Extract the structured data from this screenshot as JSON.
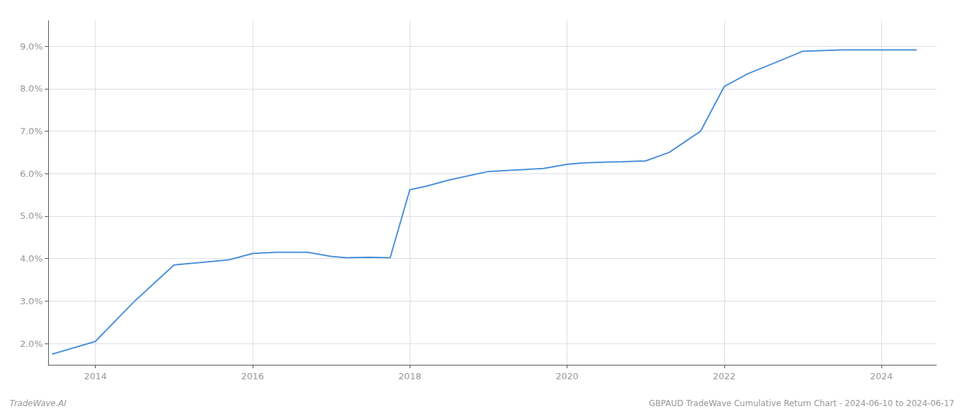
{
  "chart_data": {
    "type": "line",
    "x": [
      2013.45,
      2014.0,
      2014.5,
      2015.0,
      2015.3,
      2015.7,
      2016.0,
      2016.3,
      2016.7,
      2017.0,
      2017.2,
      2017.5,
      2017.75,
      2018.0,
      2018.2,
      2018.5,
      2018.8,
      2019.0,
      2019.3,
      2019.7,
      2020.0,
      2020.2,
      2020.5,
      2020.7,
      2021.0,
      2021.3,
      2021.7,
      2022.0,
      2022.3,
      2022.7,
      2023.0,
      2023.3,
      2023.5,
      2023.7,
      2024.0,
      2024.45
    ],
    "values": [
      1.75,
      2.05,
      3.0,
      3.85,
      3.9,
      3.97,
      4.12,
      4.15,
      4.15,
      4.05,
      4.02,
      4.03,
      4.02,
      5.62,
      5.7,
      5.85,
      5.97,
      6.05,
      6.08,
      6.12,
      6.22,
      6.25,
      6.27,
      6.28,
      6.3,
      6.5,
      7.0,
      8.05,
      8.35,
      8.65,
      8.88,
      8.9,
      8.91,
      8.91,
      8.91,
      8.91
    ],
    "color": "#4a90d9",
    "xlim": [
      2013.4,
      2024.7
    ],
    "ylim": [
      1.5,
      9.6
    ],
    "xticks": [
      2014,
      2016,
      2018,
      2020,
      2022,
      2024
    ],
    "yticks": [
      {
        "value": 2.0,
        "label": "2.0%"
      },
      {
        "value": 3.0,
        "label": "3.0%"
      },
      {
        "value": 4.0,
        "label": "4.0%"
      },
      {
        "value": 5.0,
        "label": "5.0%"
      },
      {
        "value": 6.0,
        "label": "6.0%"
      },
      {
        "value": 7.0,
        "label": "7.0%"
      },
      {
        "value": 8.0,
        "label": "8.0%"
      },
      {
        "value": 9.0,
        "label": "9.0%"
      }
    ],
    "grid": true,
    "annotations": [
      "TradeWave.AI",
      "GBPAUD TradeWave Cumulative Return Chart - 2024-06-10 to 2024-06-17"
    ]
  }
}
